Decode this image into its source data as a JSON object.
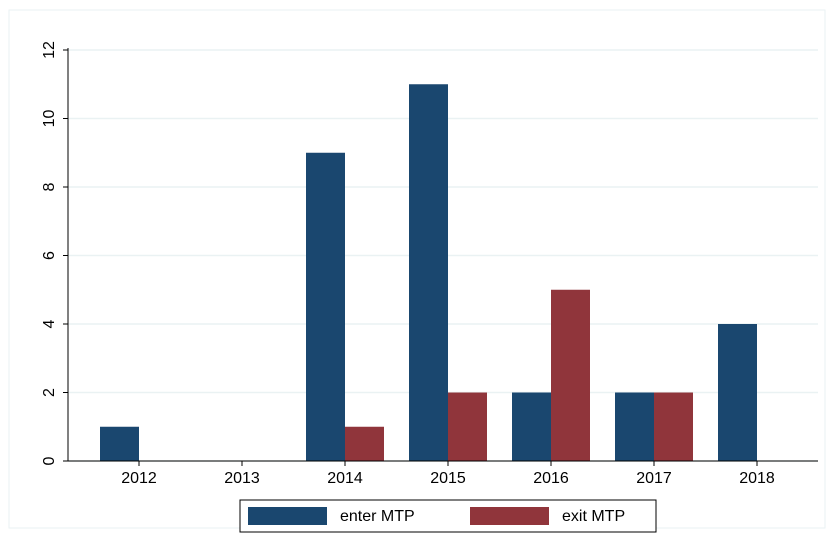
{
  "chart_data": {
    "type": "bar",
    "categories": [
      "2012",
      "2013",
      "2014",
      "2015",
      "2016",
      "2017",
      "2018"
    ],
    "series": [
      {
        "name": "enter MTP",
        "color": "#1a476f",
        "values": [
          1,
          0,
          9,
          11,
          2,
          2,
          4
        ]
      },
      {
        "name": "exit MTP",
        "color": "#90353b",
        "values": [
          0,
          0,
          1,
          2,
          5,
          2,
          0
        ]
      }
    ],
    "ylim": [
      0,
      12
    ],
    "yticks": [
      0,
      2,
      4,
      6,
      8,
      10,
      12
    ],
    "grid": true,
    "legend": "bottom"
  }
}
